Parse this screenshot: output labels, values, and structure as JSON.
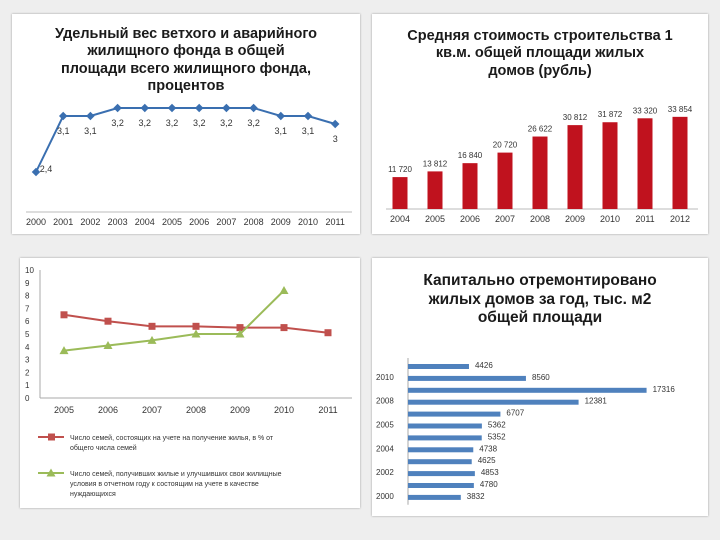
{
  "chart_data": [
    {
      "id": "dilapidated",
      "type": "line",
      "title": "Удельный вес ветхого и аварийного жилищного фонда в общей площади всего жилищного фонда, процентов",
      "title_lines": [
        "Удельный вес ветхого и аварийного",
        "жилищного фонда в общей",
        "площади всего жилищного фонда,",
        "процентов"
      ],
      "categories": [
        "2000",
        "2001",
        "2002",
        "2003",
        "2004",
        "2005",
        "2006",
        "2007",
        "2008",
        "2009",
        "2010",
        "2011"
      ],
      "values": [
        2.4,
        3.1,
        3.1,
        3.2,
        3.2,
        3.2,
        3.2,
        3.2,
        3.2,
        3.1,
        3.1,
        3
      ],
      "labels": [
        "2,4",
        "3,1",
        "3,1",
        "3,2",
        "3,2",
        "3,2",
        "3,2",
        "3,2",
        "3,2",
        "3,1",
        "3,1",
        "3"
      ],
      "color": "#3a6fb0"
    },
    {
      "id": "cost",
      "type": "bar",
      "title": "Средняя стоимость строительства 1 кв.м. общей площади жилых домов (рубль)",
      "title_lines": [
        "Средняя стоимость строительства 1",
        "кв.м. общей площади жилых",
        "домов   (рубль)"
      ],
      "categories": [
        "2004",
        "2005",
        "2006",
        "2007",
        "2008",
        "2009",
        "2010",
        "2011",
        "2012"
      ],
      "values": [
        11720,
        13812,
        16840,
        20720,
        26622,
        30812,
        31872,
        33320,
        33854
      ],
      "labels": [
        "11 720",
        "13 812",
        "16 840",
        "20 720",
        "26 622",
        "30 812",
        "31 872",
        "33 320",
        "33 854"
      ],
      "ylim": [
        0,
        36000
      ],
      "color": "#c0121e"
    },
    {
      "id": "families",
      "type": "line",
      "categories": [
        "2005",
        "2006",
        "2007",
        "2008",
        "2009",
        "2010",
        "2011"
      ],
      "yticks": [
        "10",
        "9",
        "8",
        "7",
        "6",
        "5",
        "4",
        "3",
        "2",
        "1",
        "0"
      ],
      "ylim": [
        0,
        10
      ],
      "series": [
        {
          "name": "Число семей, состоящих на учете на получение жилья, в % от общего числа семей",
          "values": [
            6.5,
            6.0,
            5.6,
            5.6,
            5.5,
            5.5,
            5.1
          ],
          "color": "#c0504d"
        },
        {
          "name": "Число семей, получивших жилые и улучшивших свои жилищные условия в отчетном году к состоящим на учете в качестве нуждающихся",
          "values": [
            3.7,
            4.1,
            4.5,
            5.0,
            5.0,
            8.4,
            null
          ],
          "color": "#9bbb59"
        }
      ]
    },
    {
      "id": "repaired",
      "type": "bar",
      "orientation": "horizontal",
      "title": "Капитально отремонтировано жилых домов за год, тыс. м2 общей площади",
      "title_lines": [
        "Капитально отремонтировано",
        "жилых домов за год, тыс. м2",
        "общей площади"
      ],
      "bars": [
        4426,
        8560,
        17316,
        12381,
        6707,
        5362,
        5352,
        4738,
        4625,
        4853,
        4780,
        3832
      ],
      "bar_labels": [
        "4426",
        "8560",
        "17316",
        "12381",
        "6707",
        "5362",
        "5352",
        "4738",
        "4625",
        "4853",
        "4780",
        "3832"
      ],
      "axis_labels": [
        "2010",
        "2008",
        "2005",
        "2004",
        "2002",
        "2000"
      ],
      "xlim": [
        0,
        18000
      ],
      "color": "#4f81bd"
    }
  ]
}
